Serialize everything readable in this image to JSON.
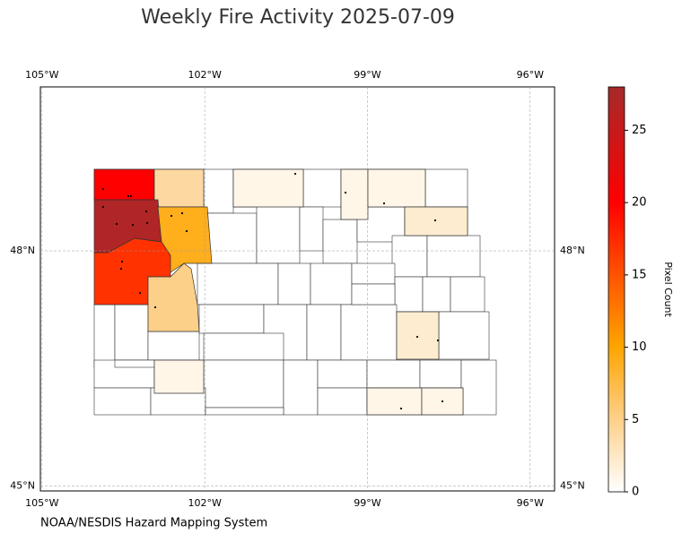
{
  "chart_data": {
    "type": "choropleth",
    "title": "Weekly Fire Activity 2025-07-09",
    "source": "NOAA/NESDIS Hazard Mapping System",
    "xlim": [
      -105.03,
      -95.55
    ],
    "ylim": [
      44.94,
      50.09
    ],
    "xticks": [
      {
        "value": -105,
        "label": "105°W"
      },
      {
        "value": -102,
        "label": "102°W"
      },
      {
        "value": -99,
        "label": "99°W"
      },
      {
        "value": -96,
        "label": "96°W"
      }
    ],
    "yticks": [
      {
        "value": 45,
        "label": "45°N"
      },
      {
        "value": 48,
        "label": "48°N"
      }
    ],
    "grid": true,
    "colorbar": {
      "label": "Pixel Count",
      "lim": [
        0,
        28
      ],
      "ticks": [
        0,
        5,
        10,
        15,
        20,
        25
      ],
      "colors": [
        "#ffffff",
        "#fdd08a",
        "#ffa500",
        "#ff0000",
        "#a52a2a"
      ],
      "stops": [
        0,
        5,
        10,
        20,
        28
      ]
    },
    "regions": {
      "values": [
        20,
        4,
        27,
        9,
        17,
        5,
        1,
        1,
        1,
        2,
        2,
        1,
        1,
        1
      ]
    }
  }
}
